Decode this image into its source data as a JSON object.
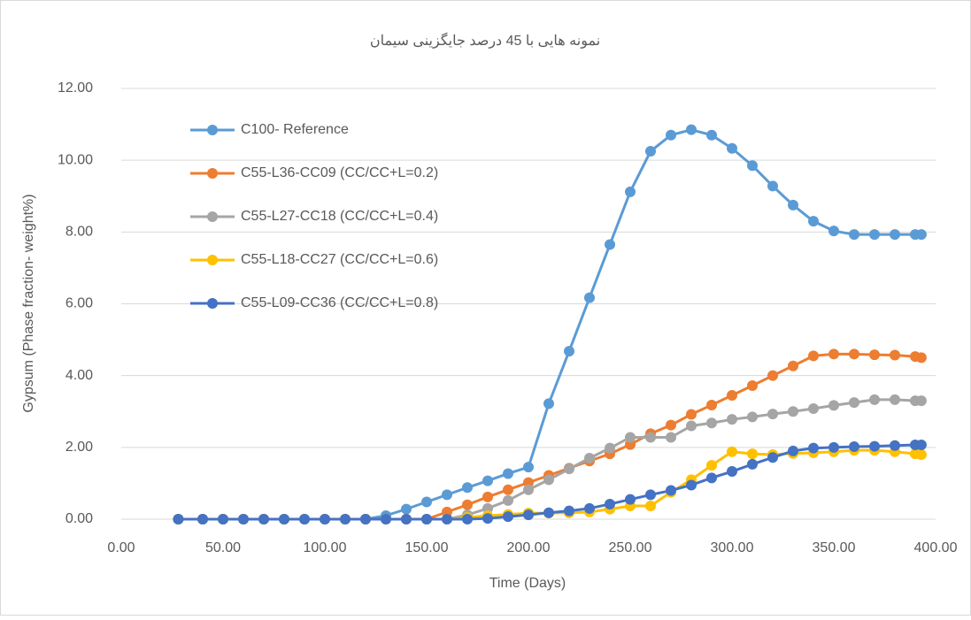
{
  "chart_data": {
    "type": "line",
    "title": "نمونه هایی با 45 درصد جایگزینی سیمان",
    "xlabel": "Time (Days)",
    "ylabel": "Gypsum (Phase fraction- weight%)",
    "x": [
      28,
      40,
      50,
      60,
      70,
      80,
      90,
      100,
      110,
      120,
      130,
      140,
      150,
      160,
      170,
      180,
      190,
      200,
      210,
      220,
      230,
      240,
      250,
      260,
      270,
      280,
      290,
      300,
      310,
      320,
      330,
      340,
      350,
      360,
      370,
      380,
      390,
      393
    ],
    "series": [
      {
        "name": "C100- Reference",
        "color": "#5b9bd5",
        "values": [
          0,
          0,
          0,
          0,
          0,
          0,
          0,
          0,
          0,
          0,
          0.1,
          0.28,
          0.48,
          0.68,
          0.88,
          1.07,
          1.27,
          1.45,
          3.22,
          4.68,
          6.17,
          7.65,
          9.12,
          10.25,
          10.7,
          10.85,
          10.7,
          10.33,
          9.85,
          9.28,
          8.75,
          8.3,
          8.03,
          7.93,
          7.93,
          7.93,
          7.93,
          7.93
        ]
      },
      {
        "name": "C55-L36-CC09 (CC/CC+L=0.2)",
        "color": "#ed7d31",
        "values": [
          0,
          0,
          0,
          0,
          0,
          0,
          0,
          0,
          0,
          0,
          0,
          0,
          0,
          0.2,
          0.4,
          0.62,
          0.82,
          1.02,
          1.22,
          1.42,
          1.62,
          1.82,
          2.08,
          2.38,
          2.62,
          2.92,
          3.18,
          3.45,
          3.72,
          4.0,
          4.27,
          4.55,
          4.6,
          4.6,
          4.58,
          4.57,
          4.53,
          4.5
        ]
      },
      {
        "name": "C55-L27-CC18 (CC/CC+L=0.4)",
        "color": "#a5a5a5",
        "values": [
          0,
          0,
          0,
          0,
          0,
          0,
          0,
          0,
          0,
          0,
          0,
          0,
          0,
          0,
          0.12,
          0.3,
          0.52,
          0.82,
          1.1,
          1.4,
          1.7,
          1.98,
          2.28,
          2.28,
          2.28,
          2.6,
          2.68,
          2.78,
          2.85,
          2.93,
          3.0,
          3.08,
          3.17,
          3.25,
          3.33,
          3.33,
          3.3,
          3.3
        ]
      },
      {
        "name": "C55-L18-CC27 (CC/CC+L=0.6)",
        "color": "#ffc000",
        "values": [
          0,
          0,
          0,
          0,
          0,
          0,
          0,
          0,
          0,
          0,
          0,
          0,
          0,
          0,
          0.05,
          0.1,
          0.13,
          0.17,
          0.17,
          0.18,
          0.2,
          0.28,
          0.37,
          0.37,
          0.75,
          1.1,
          1.5,
          1.88,
          1.82,
          1.8,
          1.83,
          1.85,
          1.88,
          1.92,
          1.92,
          1.88,
          1.82,
          1.8
        ]
      },
      {
        "name": "C55-L09-CC36 (CC/CC+L=0.8)",
        "color": "#4472c4",
        "values": [
          0,
          0,
          0,
          0,
          0,
          0,
          0,
          0,
          0,
          0,
          0,
          0,
          0,
          0,
          0,
          0.02,
          0.07,
          0.12,
          0.18,
          0.23,
          0.3,
          0.42,
          0.55,
          0.68,
          0.8,
          0.95,
          1.15,
          1.33,
          1.53,
          1.72,
          1.9,
          1.98,
          2.0,
          2.02,
          2.03,
          2.05,
          2.07,
          2.07
        ]
      }
    ],
    "xlim": [
      0,
      400
    ],
    "xticks": [
      {
        "value": 0,
        "label": "0.00"
      },
      {
        "value": 50,
        "label": "50.00"
      },
      {
        "value": 100,
        "label": "100.00"
      },
      {
        "value": 150,
        "label": "150.00"
      },
      {
        "value": 200,
        "label": "200.00"
      },
      {
        "value": 250,
        "label": "250.00"
      },
      {
        "value": 300,
        "label": "300.00"
      },
      {
        "value": 350,
        "label": "350.00"
      },
      {
        "value": 400,
        "label": "400.00"
      }
    ],
    "ylim": [
      0,
      12
    ],
    "yticks": [
      {
        "value": 0,
        "label": "0.00"
      },
      {
        "value": 2,
        "label": "2.00"
      },
      {
        "value": 4,
        "label": "4.00"
      },
      {
        "value": 6,
        "label": "6.00"
      },
      {
        "value": 8,
        "label": "8.00"
      },
      {
        "value": 10,
        "label": "10.00"
      },
      {
        "value": 12,
        "label": "12.00"
      }
    ],
    "grid": true,
    "legend": "upper left"
  }
}
